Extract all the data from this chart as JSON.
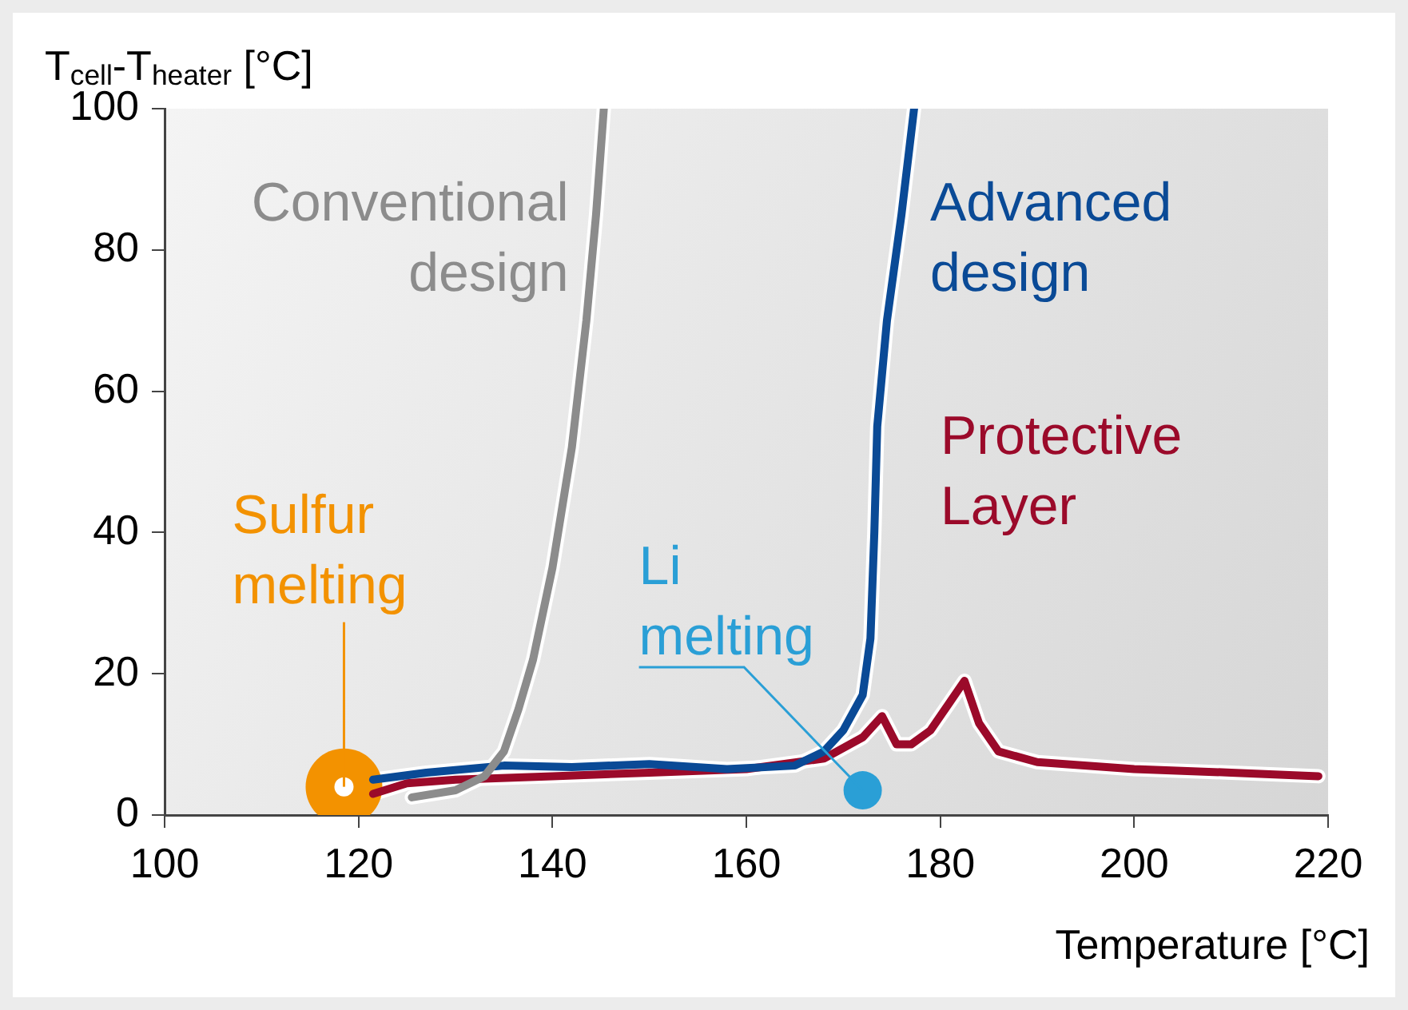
{
  "chart_data": {
    "type": "line",
    "xlabel": "Temperature [°C]",
    "ylabel": "T$_{cell}$-T$_{heater}$ [°C]",
    "xlim": [
      100,
      220
    ],
    "xticks": [
      100,
      120,
      140,
      160,
      180,
      200,
      220
    ],
    "ylim": [
      0,
      100
    ],
    "yticks": [
      0,
      20,
      40,
      60,
      80,
      100
    ],
    "grid": false,
    "legend": false,
    "marker": "none",
    "line_style": "solid",
    "series": [
      {
        "name": "Conventional design",
        "color": "#8c8c8c",
        "x": [
          125.5,
          130,
          133,
          135,
          136.5,
          138,
          140,
          142,
          143.5,
          144.5,
          145.3
        ],
        "values": [
          2.5,
          3.5,
          5.5,
          9,
          15,
          22,
          35,
          52,
          70,
          85,
          100
        ]
      },
      {
        "name": "Advanced design",
        "color": "#0a4a96",
        "x": [
          121.5,
          127,
          135,
          142,
          150,
          158,
          165,
          168,
          170,
          172,
          172.8,
          173.2,
          173.5,
          174.5,
          176,
          177.3
        ],
        "values": [
          5,
          6,
          7,
          6.8,
          7.2,
          6.5,
          7,
          9,
          12,
          17,
          25,
          40,
          55,
          70,
          85,
          100
        ]
      },
      {
        "name": "Protective Layer",
        "color": "#9b0a2a",
        "x": [
          121.5,
          125,
          130,
          140,
          150,
          160,
          168,
          172,
          174,
          175.5,
          177,
          179,
          181,
          182.5,
          184,
          186,
          190,
          200,
          210,
          219
        ],
        "values": [
          3,
          4.5,
          5,
          5.5,
          6,
          6.5,
          8,
          11,
          14,
          10,
          10,
          12,
          16,
          19,
          13,
          9,
          7.5,
          6.5,
          6,
          5.5
        ]
      },
      {
        "type": "scatter",
        "marker": "circle",
        "color": "#f39200",
        "x": [
          118.5
        ],
        "values": [
          4
        ]
      },
      {
        "type": "scatter",
        "marker": "circle",
        "color": "#2a9fd6",
        "x": [
          172
        ],
        "values": [
          3.5
        ]
      }
    ],
    "annotations": [
      {
        "text": "Sulfur\nmelting",
        "x": 118.5,
        "y": 4
      },
      {
        "text": "Li\nmelting",
        "x": 172,
        "y": 3.5
      }
    ]
  }
}
